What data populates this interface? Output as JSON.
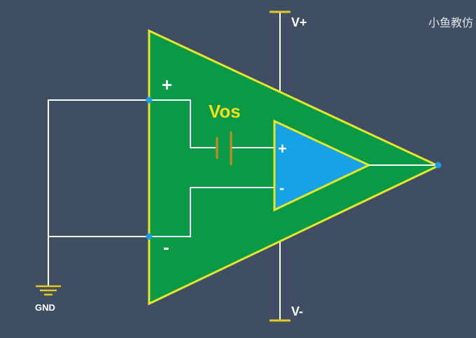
{
  "diagram": {
    "supply_positive": "V+",
    "supply_negative": "V-",
    "input_plus_outer": "+",
    "input_minus_outer": "-",
    "input_plus_inner": "+",
    "input_minus_inner": "-",
    "offset_voltage": "Vos",
    "ground": "GND",
    "watermark": "小鱼教仿"
  },
  "colors": {
    "background": "#3f4e63",
    "outer_amp_fill": "#0a9a45",
    "outer_amp_stroke": "#e6e62a",
    "inner_amp_fill": "#15a2e6",
    "inner_amp_stroke": "#e6e62a",
    "wire": "#ffffff",
    "node": "#1e9be8",
    "battery": "#c98a1f",
    "vos_text": "#f2e01d",
    "supply_marker": "#e6c81e",
    "ground_symbol": "#e6c81e"
  }
}
